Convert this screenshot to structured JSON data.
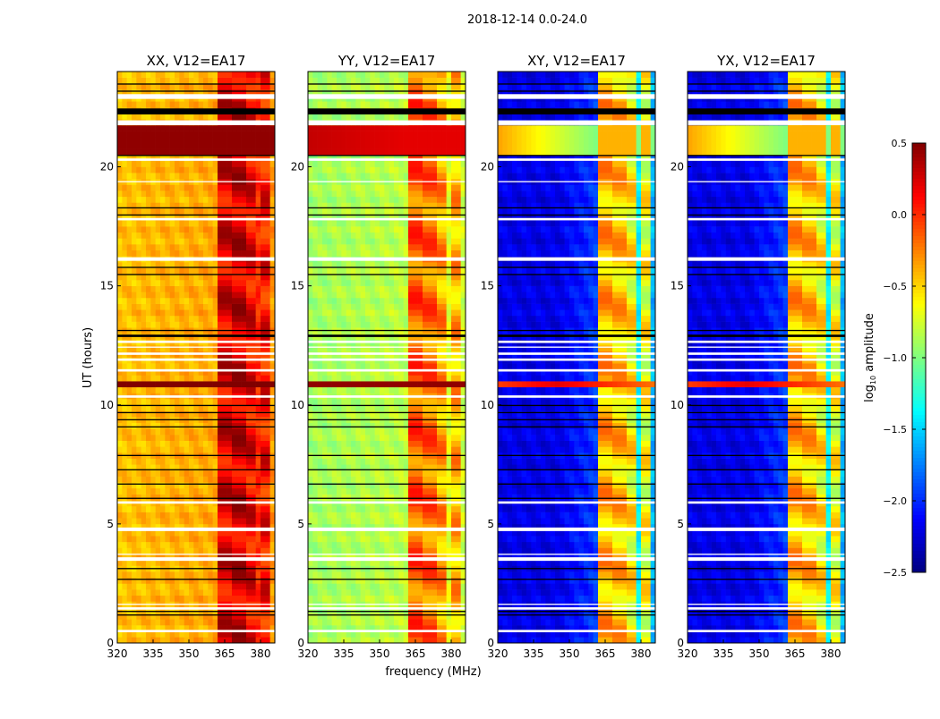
{
  "chart_data": {
    "type": "heatmap",
    "title": "2018-12-14 0.0-24.0",
    "xlabel": "frequency (MHz)",
    "ylabel": "UT (hours)",
    "xlim": [
      320,
      386
    ],
    "ylim": [
      0,
      24
    ],
    "xticks": [
      "320",
      "335",
      "350",
      "365",
      "380"
    ],
    "yticks": [
      "0",
      "5",
      "10",
      "15",
      "20"
    ],
    "colorbar": {
      "label": "log10 amplitude",
      "label_main": "log",
      "label_sub": "10",
      "label_rest": " amplitude",
      "range": [
        -2.5,
        0.5
      ],
      "ticks": [
        "0.5",
        "0.0",
        "−0.5",
        "−1.0",
        "−1.5",
        "−2.0",
        "−2.5"
      ],
      "tick_values": [
        0.5,
        0.0,
        -0.5,
        -1.0,
        -1.5,
        -2.0,
        -2.5
      ],
      "colormap": "jet"
    },
    "rfi_band_blocks_mhz": [
      [
        362,
        367.5
      ],
      [
        369,
        373.5
      ],
      [
        374.5,
        378.5
      ],
      [
        379.5,
        383.5
      ]
    ],
    "flagged_white_hours": [
      [
        0.45,
        0.55
      ],
      [
        1.4,
        1.5
      ],
      [
        1.6,
        1.65
      ],
      [
        3.45,
        3.6
      ],
      [
        3.7,
        3.75
      ],
      [
        4.7,
        4.85
      ],
      [
        5.85,
        5.95
      ],
      [
        10.3,
        10.4
      ],
      [
        11.4,
        11.5
      ],
      [
        11.85,
        11.95
      ],
      [
        12.1,
        12.2
      ],
      [
        12.4,
        12.45
      ],
      [
        12.6,
        12.7
      ],
      [
        16.05,
        16.2
      ],
      [
        17.75,
        17.85
      ],
      [
        19.35,
        19.4
      ],
      [
        20.25,
        20.35
      ],
      [
        21.75,
        21.95
      ],
      [
        22.85,
        23.05
      ]
    ],
    "flagged_black_hours": [
      [
        1.15,
        1.2
      ],
      [
        1.3,
        1.35
      ],
      [
        2.65,
        2.7
      ],
      [
        3.1,
        3.15
      ],
      [
        6.05,
        6.1
      ],
      [
        6.65,
        6.7
      ],
      [
        7.25,
        7.3
      ],
      [
        7.85,
        7.9
      ],
      [
        9.05,
        9.1
      ],
      [
        9.35,
        9.4
      ],
      [
        9.65,
        9.7
      ],
      [
        9.95,
        10.0
      ],
      [
        12.85,
        12.95
      ],
      [
        13.1,
        13.15
      ],
      [
        15.45,
        15.5
      ],
      [
        15.75,
        15.8
      ],
      [
        17.95,
        18.0
      ],
      [
        18.25,
        18.3
      ],
      [
        20.45,
        20.5
      ],
      [
        22.2,
        22.45
      ],
      [
        23.15,
        23.2
      ],
      [
        23.45,
        23.5
      ]
    ],
    "panels": [
      {
        "title": "XX, V12=EA17",
        "base": -0.45,
        "band": [
          0.3,
          0.35,
          0.25,
          0.2
        ],
        "gap": 0.0,
        "bright_10_9h": 0.5,
        "bright_21h": [
          0.45,
          0.45
        ]
      },
      {
        "title": "YY, V12=EA17",
        "base": -0.9,
        "band": [
          -0.05,
          -0.1,
          -0.25,
          -0.3
        ],
        "gap": -0.7,
        "bright_10_9h": 0.45,
        "bright_21h": [
          0.3,
          0.2
        ]
      },
      {
        "title": "XY, V12=EA17",
        "base": -2.2,
        "band": [
          -0.3,
          -0.35,
          -0.5,
          -0.55
        ],
        "gap": -1.4,
        "bright_10_9h": 0.2,
        "bright_21h": [
          -0.35,
          -1.0
        ]
      },
      {
        "title": "YX, V12=EA17",
        "base": -2.2,
        "band": [
          -0.3,
          -0.35,
          -0.5,
          -0.55
        ],
        "gap": -1.4,
        "bright_10_9h": 0.2,
        "bright_21h": [
          -0.35,
          -1.0
        ]
      }
    ]
  }
}
